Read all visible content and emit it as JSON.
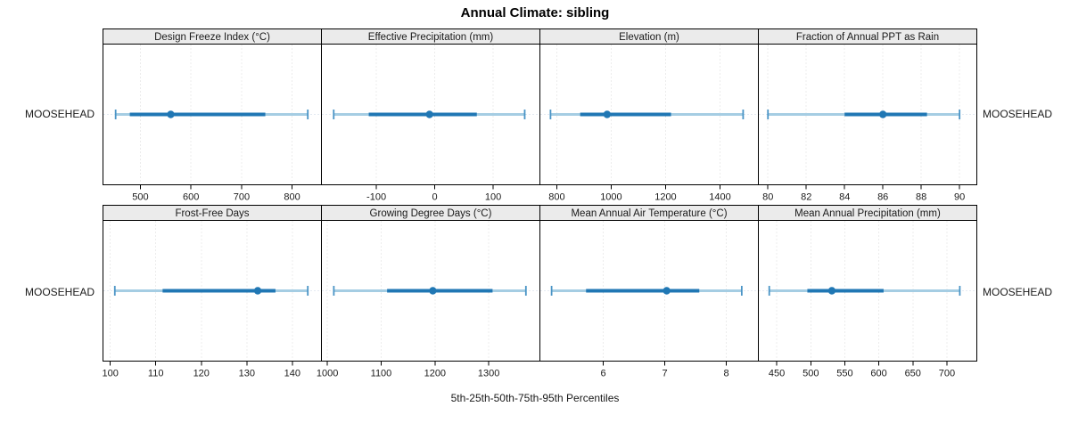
{
  "title": "Annual Climate: sibling",
  "caption": "5th-25th-50th-75th-95th Percentiles",
  "row_label": "MOOSEHEAD",
  "colors": {
    "median_dot": "#2077b4",
    "iqr_bar": "#2077b4",
    "whisker": "#a5cde3",
    "whisker_cap": "#4a94c6",
    "reference_dotted": "#c9d6e4",
    "gridline": "#d9d9d9",
    "strip_bg": "#ebebeb",
    "panel_border": "#000000",
    "text": "#1a1a1a"
  },
  "chart_data": {
    "type": "scatter",
    "variant": "trellis-percentile-dotplot",
    "title": "Annual Climate: sibling",
    "xlabel": "5th-25th-50th-75th-95th Percentiles",
    "row_category": "MOOSEHEAD",
    "layout": {
      "rows": 2,
      "cols": 4,
      "axis_relation": "free",
      "grid": "dotted-vertical"
    },
    "panels": [
      {
        "title": "Design Freeze Index (°C)",
        "xlim": [
          426,
          858
        ],
        "xticks": [
          500,
          600,
          700,
          800
        ],
        "percentiles": {
          "p5": 451,
          "p25": 479,
          "p50": 560,
          "p75": 747,
          "p95": 831
        }
      },
      {
        "title": "Effective Precipitation (mm)",
        "xlim": [
          -194,
          180
        ],
        "xticks": [
          -100,
          0,
          100
        ],
        "percentiles": {
          "p5": -173,
          "p25": -113,
          "p50": -9,
          "p75": 72,
          "p95": 154
        }
      },
      {
        "title": "Elevation (m)",
        "xlim": [
          738,
          1541
        ],
        "xticks": [
          800,
          1000,
          1200,
          1400
        ],
        "percentiles": {
          "p5": 777,
          "p25": 886,
          "p50": 985,
          "p75": 1220,
          "p95": 1485
        }
      },
      {
        "title": "Fraction of Annual PPT as Rain",
        "xlim": [
          79.5,
          90.9
        ],
        "xticks": [
          80,
          82,
          84,
          86,
          88,
          90
        ],
        "percentiles": {
          "p5": 80.0,
          "p25": 84.0,
          "p50": 86.0,
          "p75": 88.3,
          "p95": 90.0
        }
      },
      {
        "title": "Frost-Free Days",
        "xlim": [
          98.4,
          146.4
        ],
        "xticks": [
          100,
          110,
          120,
          130,
          140
        ],
        "percentiles": {
          "p5": 101,
          "p25": 111.5,
          "p50": 132.4,
          "p75": 136.3,
          "p95": 143.4
        }
      },
      {
        "title": "Growing Degree Days (°C)",
        "xlim": [
          989,
          1395
        ],
        "xticks": [
          1000,
          1100,
          1200,
          1300
        ],
        "percentiles": {
          "p5": 1012,
          "p25": 1111,
          "p50": 1196,
          "p75": 1307,
          "p95": 1369
        }
      },
      {
        "title": "Mean Annual Air Temperature (°C)",
        "xlim": [
          4.97,
          8.52
        ],
        "xticks": [
          6,
          7,
          8
        ],
        "percentiles": {
          "p5": 5.16,
          "p25": 5.72,
          "p50": 7.03,
          "p75": 7.56,
          "p95": 8.25
        }
      },
      {
        "title": "Mean Annual Precipitation (mm)",
        "xlim": [
          423,
          744
        ],
        "xticks": [
          450,
          500,
          550,
          600,
          650,
          700
        ],
        "percentiles": {
          "p5": 439,
          "p25": 495,
          "p50": 531,
          "p75": 607,
          "p95": 719
        }
      }
    ]
  }
}
